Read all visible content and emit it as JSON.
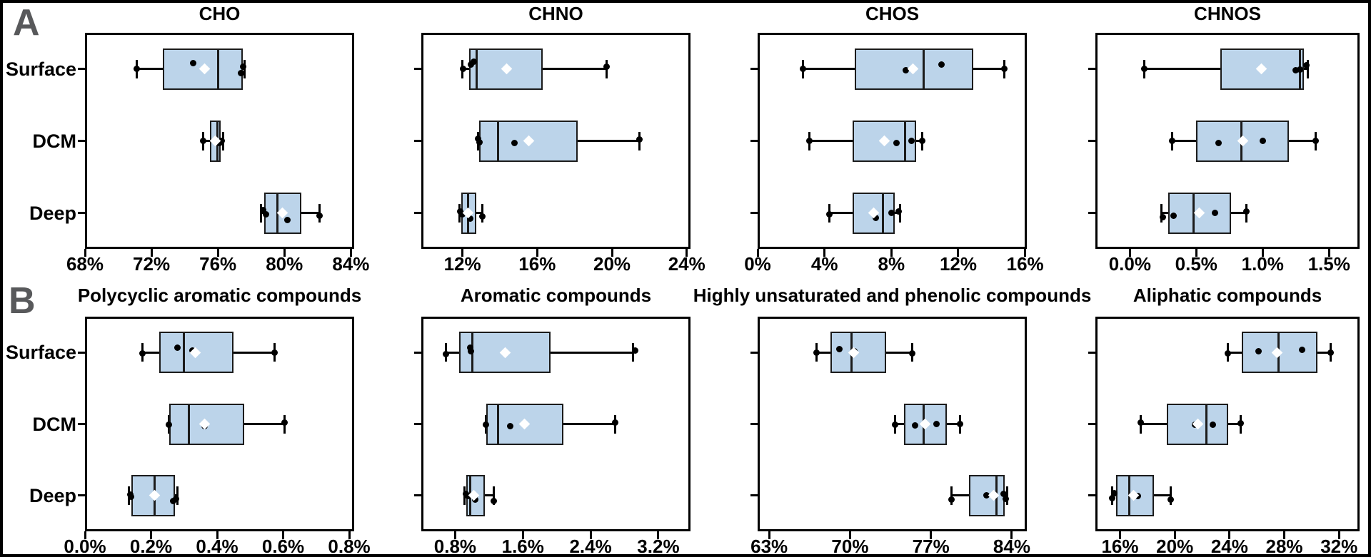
{
  "figure": {
    "row_labels": [
      "A",
      "B"
    ],
    "row_label_color": "#58595b",
    "background": "#ffffff",
    "frame_color": "#000000",
    "box_fill": "#bcd4ea",
    "box_stroke": "#1b1b1b",
    "point_color": "#000000",
    "mean_marker_color": "#ffffff",
    "categories": [
      "Surface",
      "DCM",
      "Deep"
    ]
  },
  "chart_data": [
    {
      "type": "boxplot",
      "orientation": "horizontal",
      "row": "A",
      "col": 0,
      "title": "CHO",
      "xlim": [
        68,
        84.2
      ],
      "tick_values": [
        68,
        72,
        76,
        80,
        84
      ],
      "ticks": [
        "68%",
        "72%",
        "76%",
        "80%",
        "84%"
      ],
      "groups": [
        {
          "name": "Surface",
          "whislo": 71.1,
          "q1": 72.7,
          "med": 76.0,
          "q3": 77.5,
          "whishi": 77.6,
          "mean": 75.2,
          "points": [
            {
              "v": 71.1,
              "dy": 0
            },
            {
              "v": 74.5,
              "dy": -8
            },
            {
              "v": 77.4,
              "dy": 6
            },
            {
              "v": 77.5,
              "dy": -3
            }
          ]
        },
        {
          "name": "DCM",
          "whislo": 75.1,
          "q1": 75.5,
          "med": 75.95,
          "q3": 76.15,
          "whishi": 76.3,
          "mean": 75.85,
          "points": [
            {
              "v": 75.1,
              "dy": 0
            },
            {
              "v": 76.1,
              "dy": 3
            },
            {
              "v": 76.25,
              "dy": 0
            }
          ]
        },
        {
          "name": "Deep",
          "whislo": 78.6,
          "q1": 78.8,
          "med": 79.6,
          "q3": 81.0,
          "whishi": 82.1,
          "mean": 79.9,
          "points": [
            {
              "v": 78.7,
              "dy": -4
            },
            {
              "v": 78.9,
              "dy": 2
            },
            {
              "v": 80.2,
              "dy": 10
            },
            {
              "v": 82.1,
              "dy": 4
            }
          ]
        }
      ]
    },
    {
      "type": "boxplot",
      "orientation": "horizontal",
      "row": "A",
      "col": 1,
      "title": "CHNO",
      "xlim": [
        9.8,
        24.2
      ],
      "tick_values": [
        12,
        16,
        20,
        24
      ],
      "ticks": [
        "12%",
        "16%",
        "20%",
        "24%"
      ],
      "groups": [
        {
          "name": "Surface",
          "whislo": 12.0,
          "q1": 12.35,
          "med": 12.75,
          "q3": 16.3,
          "whishi": 19.7,
          "mean": 14.35,
          "points": [
            {
              "v": 12.05,
              "dy": 0
            },
            {
              "v": 12.45,
              "dy": -6
            },
            {
              "v": 12.6,
              "dy": -10
            },
            {
              "v": 19.7,
              "dy": -3
            }
          ]
        },
        {
          "name": "DCM",
          "whislo": 12.85,
          "q1": 12.9,
          "med": 13.9,
          "q3": 18.15,
          "whishi": 21.45,
          "mean": 15.55,
          "points": [
            {
              "v": 12.85,
              "dy": -3
            },
            {
              "v": 12.9,
              "dy": 2
            },
            {
              "v": 14.8,
              "dy": 3
            },
            {
              "v": 21.45,
              "dy": -2
            }
          ]
        },
        {
          "name": "Deep",
          "whislo": 11.85,
          "q1": 11.95,
          "med": 12.3,
          "q3": 12.75,
          "whishi": 13.05,
          "mean": 12.3,
          "points": [
            {
              "v": 11.9,
              "dy": -2
            },
            {
              "v": 12.0,
              "dy": 2
            },
            {
              "v": 12.4,
              "dy": 8
            },
            {
              "v": 13.05,
              "dy": 5
            }
          ]
        }
      ]
    },
    {
      "type": "boxplot",
      "orientation": "horizontal",
      "row": "A",
      "col": 2,
      "title": "CHOS",
      "xlim": [
        0,
        16.1
      ],
      "tick_values": [
        0,
        4,
        8,
        12,
        16
      ],
      "ticks": [
        "0%",
        "4%",
        "8%",
        "12%",
        "16%"
      ],
      "groups": [
        {
          "name": "Surface",
          "whislo": 2.7,
          "q1": 5.8,
          "med": 9.95,
          "q3": 12.9,
          "whishi": 14.75,
          "mean": 9.3,
          "points": [
            {
              "v": 2.7,
              "dy": 0
            },
            {
              "v": 8.85,
              "dy": 2
            },
            {
              "v": 11.0,
              "dy": -6
            },
            {
              "v": 14.75,
              "dy": 0
            }
          ]
        },
        {
          "name": "DCM",
          "whislo": 3.1,
          "q1": 5.7,
          "med": 8.8,
          "q3": 9.5,
          "whishi": 9.85,
          "mean": 7.6,
          "points": [
            {
              "v": 3.1,
              "dy": 0
            },
            {
              "v": 8.3,
              "dy": 3
            },
            {
              "v": 9.2,
              "dy": 0
            },
            {
              "v": 9.85,
              "dy": 0
            }
          ]
        },
        {
          "name": "Deep",
          "whislo": 4.3,
          "q1": 5.7,
          "med": 7.5,
          "q3": 8.2,
          "whishi": 8.5,
          "mean": 6.95,
          "points": [
            {
              "v": 4.3,
              "dy": 2
            },
            {
              "v": 7.05,
              "dy": 7
            },
            {
              "v": 8.0,
              "dy": 0
            },
            {
              "v": 8.45,
              "dy": -2
            }
          ]
        }
      ]
    },
    {
      "type": "boxplot",
      "orientation": "horizontal",
      "row": "A",
      "col": 3,
      "title": "CHNOS",
      "xlim": [
        -0.26,
        1.73
      ],
      "tick_values": [
        0.0,
        0.5,
        1.0,
        1.5
      ],
      "ticks": [
        "0.0%",
        "0.5%",
        "1.0%",
        "1.5%"
      ],
      "groups": [
        {
          "name": "Surface",
          "whislo": 0.11,
          "q1": 0.68,
          "med": 1.28,
          "q3": 1.31,
          "whishi": 1.34,
          "mean": 0.99,
          "points": [
            {
              "v": 0.11,
              "dy": 0
            },
            {
              "v": 1.25,
              "dy": 2
            },
            {
              "v": 1.28,
              "dy": 1
            },
            {
              "v": 1.33,
              "dy": -5
            }
          ]
        },
        {
          "name": "DCM",
          "whislo": 0.32,
          "q1": 0.5,
          "med": 0.84,
          "q3": 1.2,
          "whishi": 1.4,
          "mean": 0.85,
          "points": [
            {
              "v": 0.32,
              "dy": 0
            },
            {
              "v": 0.67,
              "dy": 3
            },
            {
              "v": 1.0,
              "dy": 0
            },
            {
              "v": 1.4,
              "dy": 0
            }
          ]
        },
        {
          "name": "Deep",
          "whislo": 0.24,
          "q1": 0.29,
          "med": 0.48,
          "q3": 0.76,
          "whishi": 0.88,
          "mean": 0.52,
          "points": [
            {
              "v": 0.25,
              "dy": 6
            },
            {
              "v": 0.33,
              "dy": 4
            },
            {
              "v": 0.64,
              "dy": 0
            },
            {
              "v": 0.88,
              "dy": -2
            }
          ]
        }
      ]
    },
    {
      "type": "boxplot",
      "orientation": "horizontal",
      "row": "B",
      "col": 0,
      "title": "Polycyclic aromatic compounds",
      "xlim": [
        0,
        0.815
      ],
      "tick_values": [
        0.0,
        0.2,
        0.4,
        0.6,
        0.8
      ],
      "ticks": [
        "0.0%",
        "0.2%",
        "0.4%",
        "0.6%",
        "0.8%"
      ],
      "groups": [
        {
          "name": "Surface",
          "whislo": 0.173,
          "q1": 0.225,
          "med": 0.3,
          "q3": 0.45,
          "whishi": 0.575,
          "mean": 0.335,
          "points": [
            {
              "v": 0.173,
              "dy": 1
            },
            {
              "v": 0.28,
              "dy": -7
            },
            {
              "v": 0.325,
              "dy": -3
            },
            {
              "v": 0.575,
              "dy": 0
            }
          ]
        },
        {
          "name": "DCM",
          "whislo": 0.253,
          "q1": 0.256,
          "med": 0.315,
          "q3": 0.483,
          "whishi": 0.605,
          "mean": 0.362,
          "points": [
            {
              "v": 0.253,
              "dy": 1
            },
            {
              "v": 0.362,
              "dy": 3
            },
            {
              "v": 0.605,
              "dy": -2
            }
          ]
        },
        {
          "name": "Deep",
          "whislo": 0.132,
          "q1": 0.14,
          "med": 0.21,
          "q3": 0.273,
          "whishi": 0.28,
          "mean": 0.21,
          "points": [
            {
              "v": 0.138,
              "dy": -1
            },
            {
              "v": 0.14,
              "dy": 2
            },
            {
              "v": 0.268,
              "dy": 8
            },
            {
              "v": 0.275,
              "dy": 5
            }
          ]
        }
      ]
    },
    {
      "type": "boxplot",
      "orientation": "horizontal",
      "row": "B",
      "col": 1,
      "title": "Aromatic compounds",
      "xlim": [
        0.4,
        3.58
      ],
      "tick_values": [
        0.8,
        1.6,
        2.4,
        3.2
      ],
      "ticks": [
        "0.8%",
        "1.6%",
        "2.4%",
        "3.2%"
      ],
      "groups": [
        {
          "name": "Surface",
          "whislo": 0.69,
          "q1": 0.85,
          "med": 1.0,
          "q3": 1.93,
          "whishi": 2.9,
          "mean": 1.39,
          "points": [
            {
              "v": 0.69,
              "dy": 2
            },
            {
              "v": 0.98,
              "dy": -7
            },
            {
              "v": 0.99,
              "dy": -2
            },
            {
              "v": 2.93,
              "dy": -3
            }
          ]
        },
        {
          "name": "DCM",
          "whislo": 1.16,
          "q1": 1.17,
          "med": 1.31,
          "q3": 2.08,
          "whishi": 2.69,
          "mean": 1.62,
          "points": [
            {
              "v": 1.16,
              "dy": 1
            },
            {
              "v": 1.45,
              "dy": 3
            },
            {
              "v": 2.69,
              "dy": -2
            }
          ]
        },
        {
          "name": "Deep",
          "whislo": 0.91,
          "q1": 0.93,
          "med": 0.98,
          "q3": 1.15,
          "whishi": 1.26,
          "mean": 1.02,
          "points": [
            {
              "v": 0.93,
              "dy": -2
            },
            {
              "v": 0.95,
              "dy": 1
            },
            {
              "v": 1.04,
              "dy": 6
            },
            {
              "v": 1.26,
              "dy": 8
            }
          ]
        }
      ]
    },
    {
      "type": "boxplot",
      "orientation": "horizontal",
      "row": "B",
      "col": 2,
      "title": "Highly unsaturated and phenolic compounds",
      "xlim": [
        62,
        85.3
      ],
      "tick_values": [
        63,
        70,
        77,
        84
      ],
      "ticks": [
        "63%",
        "70%",
        "77%",
        "84%"
      ],
      "groups": [
        {
          "name": "Surface",
          "whislo": 67.1,
          "q1": 68.3,
          "med": 70.1,
          "q3": 73.1,
          "whishi": 75.4,
          "mean": 70.3,
          "points": [
            {
              "v": 67.1,
              "dy": 0
            },
            {
              "v": 69.1,
              "dy": -5
            },
            {
              "v": 70.4,
              "dy": -2
            },
            {
              "v": 75.4,
              "dy": 1
            }
          ]
        },
        {
          "name": "DCM",
          "whislo": 73.9,
          "q1": 74.7,
          "med": 76.4,
          "q3": 78.4,
          "whishi": 79.5,
          "mean": 76.5,
          "points": [
            {
              "v": 73.9,
              "dy": 1
            },
            {
              "v": 75.6,
              "dy": 2
            },
            {
              "v": 77.5,
              "dy": 0
            },
            {
              "v": 79.5,
              "dy": 0
            }
          ]
        },
        {
          "name": "Deep",
          "whislo": 78.8,
          "q1": 80.3,
          "med": 82.7,
          "q3": 83.4,
          "whishi": 83.6,
          "mean": 82.4,
          "points": [
            {
              "v": 78.8,
              "dy": 6
            },
            {
              "v": 81.8,
              "dy": 0
            },
            {
              "v": 83.3,
              "dy": -2
            },
            {
              "v": 83.45,
              "dy": 5
            }
          ]
        }
      ]
    },
    {
      "type": "boxplot",
      "orientation": "horizontal",
      "row": "B",
      "col": 3,
      "title": "Aliphatic compounds",
      "xlim": [
        14.2,
        33.5
      ],
      "tick_values": [
        16,
        20,
        24,
        28,
        32
      ],
      "ticks": [
        "16%",
        "20%",
        "24%",
        "28%",
        "32%"
      ],
      "groups": [
        {
          "name": "Surface",
          "whislo": 23.9,
          "q1": 24.9,
          "med": 27.6,
          "q3": 30.4,
          "whishi": 31.4,
          "mean": 27.5,
          "points": [
            {
              "v": 23.9,
              "dy": 1
            },
            {
              "v": 26.1,
              "dy": -2
            },
            {
              "v": 29.3,
              "dy": -4
            },
            {
              "v": 31.4,
              "dy": 0
            }
          ]
        },
        {
          "name": "DCM",
          "whislo": 17.5,
          "q1": 19.4,
          "med": 22.3,
          "q3": 23.9,
          "whishi": 24.8,
          "mean": 21.7,
          "points": [
            {
              "v": 17.5,
              "dy": -2
            },
            {
              "v": 21.5,
              "dy": 1
            },
            {
              "v": 22.8,
              "dy": 1
            },
            {
              "v": 24.8,
              "dy": -1
            }
          ]
        },
        {
          "name": "Deep",
          "whislo": 15.4,
          "q1": 15.7,
          "med": 16.7,
          "q3": 18.5,
          "whishi": 19.7,
          "mean": 17.0,
          "points": [
            {
              "v": 15.45,
              "dy": 4
            },
            {
              "v": 15.6,
              "dy": -3
            },
            {
              "v": 17.3,
              "dy": 1
            },
            {
              "v": 19.7,
              "dy": 6
            }
          ]
        }
      ]
    }
  ]
}
